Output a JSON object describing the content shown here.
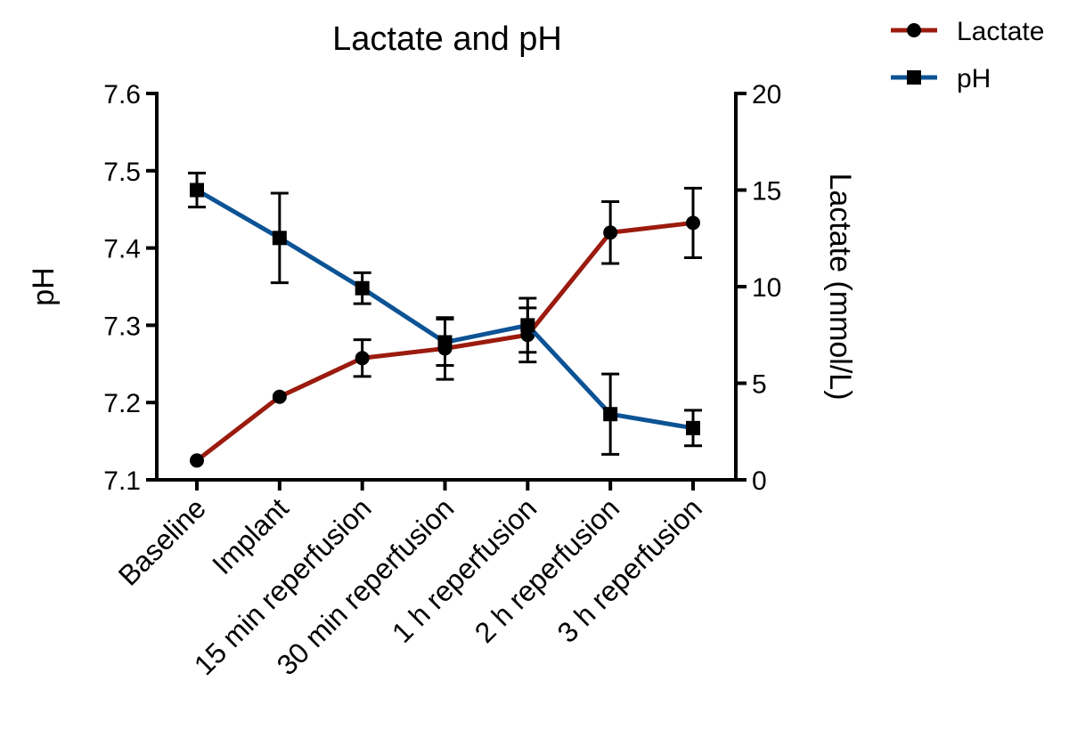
{
  "chart_data": {
    "type": "line",
    "title": "Lactate and pH",
    "categories": [
      "Baseline",
      "Implant",
      "15 min reperfusion",
      "30 min reperfusion",
      "1 h reperfusion",
      "2 h reperfusion",
      "3 h reperfusion"
    ],
    "y_left": {
      "label": "pH",
      "range": [
        7.1,
        7.6
      ],
      "ticks": [
        "7.1",
        "7.2",
        "7.3",
        "7.4",
        "7.5",
        "7.6"
      ]
    },
    "y_right": {
      "label": "Lactate (mmol/L)",
      "range": [
        0,
        20
      ],
      "ticks": [
        "0",
        "5",
        "10",
        "15",
        "20"
      ]
    },
    "series": [
      {
        "name": "Lactate",
        "axis": "right",
        "color": "#9b1b0e",
        "marker": "circle",
        "values": [
          1.0,
          4.3,
          6.3,
          6.8,
          7.5,
          12.8,
          13.3
        ],
        "error": [
          0,
          0,
          0.95,
          1.6,
          1.4,
          1.6,
          1.8
        ]
      },
      {
        "name": "pH",
        "axis": "left",
        "color": "#0c5395",
        "marker": "square",
        "values": [
          7.475,
          7.413,
          7.348,
          7.278,
          7.3,
          7.185,
          7.167
        ],
        "error": [
          0.022,
          0.058,
          0.02,
          0.03,
          0.035,
          0.052,
          0.023
        ]
      }
    ],
    "legend": [
      "Lactate",
      "pH"
    ],
    "legend_position": "top-right",
    "grid": false
  }
}
